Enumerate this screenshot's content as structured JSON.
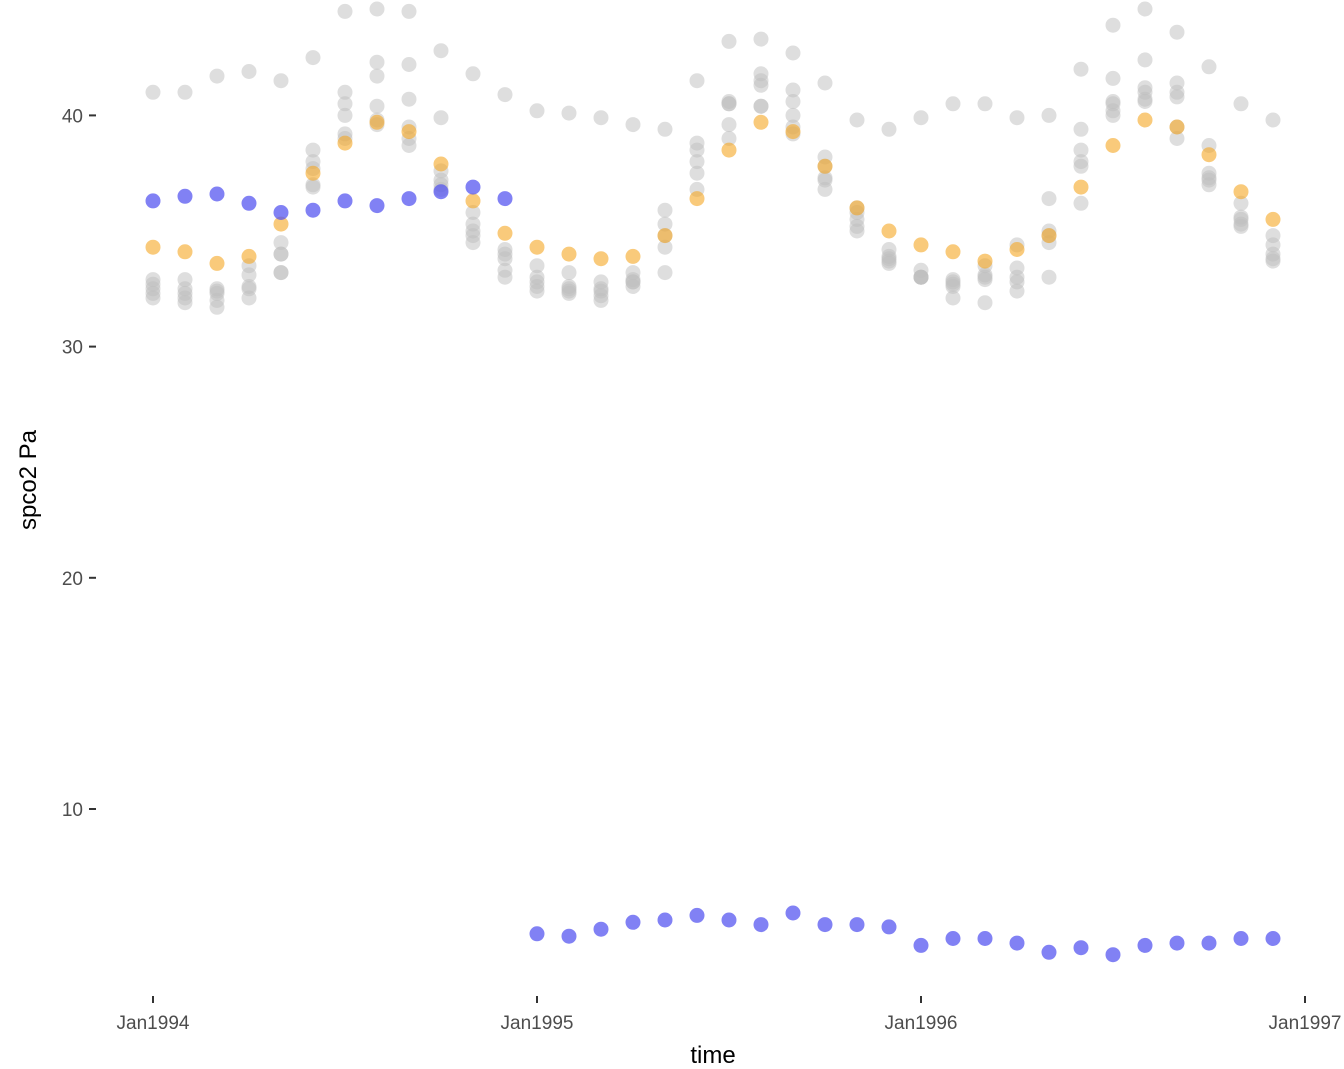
{
  "chart_data": {
    "type": "scatter",
    "title": "",
    "xlabel": "time",
    "ylabel": "spco2  Pa",
    "x_ticks": [
      "Jan1994",
      "Jan1995",
      "Jan1996",
      "Jan1997"
    ],
    "x_tick_months": [
      0,
      12,
      24,
      36
    ],
    "y_ticks": [
      10,
      20,
      30,
      40
    ],
    "xlim_months": [
      -1.45,
      36
    ],
    "ylim": [
      2,
      45
    ],
    "grid": false,
    "legend": "none",
    "colors": {
      "background_points": "#bebebe",
      "highlight_a": "#f5a623",
      "highlight_b": "#5050f0"
    },
    "background_months": [
      0,
      1,
      2,
      3,
      4,
      5,
      6,
      7,
      8,
      9,
      10,
      11,
      12,
      13,
      14,
      15,
      16,
      17,
      18,
      19,
      20,
      21,
      22,
      23,
      24,
      25,
      26,
      27,
      28,
      29,
      30,
      31,
      32,
      33,
      34,
      35
    ],
    "background_series": [
      {
        "values": [
          41.0,
          41.0,
          41.7,
          41.9,
          41.5,
          42.5,
          44.5,
          44.6,
          44.5,
          42.8,
          41.8,
          40.9,
          40.2,
          40.1,
          39.9,
          39.6,
          39.4,
          41.5,
          43.2,
          43.3,
          42.7,
          41.4,
          39.8,
          39.4,
          39.9,
          40.5,
          40.5,
          39.9,
          40.0,
          42.0,
          43.9,
          44.6,
          43.6,
          42.1,
          40.5,
          39.8
        ]
      },
      {
        "values": [
          32.9,
          32.9,
          32.5,
          33.5,
          34.5,
          38.5,
          41.0,
          42.3,
          42.2,
          39.9,
          35.8,
          34.2,
          33.5,
          33.2,
          32.8,
          33.2,
          35.9,
          38.8,
          40.6,
          41.8,
          41.1,
          38.2,
          36.0,
          34.2,
          33.3,
          32.9,
          33.5,
          34.4,
          36.4,
          39.4,
          41.6,
          42.4,
          41.4,
          38.7,
          36.2,
          34.8
        ]
      },
      {
        "values": [
          32.7,
          32.5,
          32.4,
          33.1,
          34.0,
          38.0,
          40.5,
          41.7,
          40.7,
          37.6,
          35.3,
          34.0,
          33.0,
          32.6,
          32.5,
          32.9,
          35.3,
          38.5,
          40.5,
          41.5,
          40.6,
          37.8,
          35.8,
          33.9,
          33.0,
          32.8,
          33.1,
          33.4,
          35.0,
          38.5,
          40.6,
          41.2,
          41.0,
          37.5,
          35.6,
          34.4
        ]
      },
      {
        "values": [
          32.5,
          32.3,
          32.3,
          32.6,
          34.0,
          37.7,
          40.0,
          40.4,
          39.5,
          37.2,
          35.0,
          33.8,
          32.8,
          32.5,
          32.4,
          32.8,
          34.8,
          38.0,
          40.5,
          41.3,
          40.0,
          37.3,
          35.5,
          33.8,
          33.0,
          32.7,
          33.0,
          33.0,
          34.8,
          38.0,
          40.5,
          41.0,
          40.8,
          37.3,
          35.5,
          34.0
        ]
      },
      {
        "values": [
          32.3,
          32.1,
          32.0,
          32.5,
          33.2,
          37.0,
          39.2,
          39.8,
          39.0,
          37.0,
          34.8,
          33.3,
          32.6,
          32.4,
          32.2,
          32.6,
          34.3,
          37.5,
          39.6,
          40.4,
          39.5,
          37.2,
          35.2,
          33.6,
          33.0,
          32.6,
          32.9,
          32.8,
          34.5,
          37.8,
          40.2,
          40.7,
          39.5,
          37.2,
          35.3,
          33.8
        ]
      },
      {
        "values": [
          32.1,
          31.9,
          31.7,
          32.1,
          33.2,
          36.9,
          39.0,
          39.6,
          38.7,
          36.8,
          34.5,
          33.0,
          32.4,
          32.3,
          32.0,
          32.8,
          33.2,
          36.8,
          39.0,
          40.4,
          39.2,
          36.8,
          35.0,
          33.7,
          33.0,
          32.1,
          31.9,
          32.4,
          33.0,
          36.2,
          40.0,
          40.6,
          39.0,
          37.0,
          35.2,
          33.7
        ]
      }
    ],
    "series": [
      {
        "color": "#f5a623",
        "months": [
          0,
          1,
          2,
          3,
          4,
          5,
          6,
          7,
          8,
          9,
          10,
          11,
          12,
          13,
          14,
          15,
          16,
          17,
          18,
          19,
          20,
          21,
          22,
          23,
          24,
          25,
          26,
          27,
          28,
          29,
          30,
          31,
          32,
          33,
          34,
          35
        ],
        "values": [
          34.3,
          34.1,
          33.6,
          33.9,
          35.3,
          37.5,
          38.8,
          39.7,
          39.3,
          37.9,
          36.3,
          34.9,
          34.3,
          34.0,
          33.8,
          33.9,
          34.8,
          36.4,
          38.5,
          39.7,
          39.3,
          37.8,
          36.0,
          35.0,
          34.4,
          34.1,
          33.7,
          34.2,
          34.8,
          36.9,
          38.7,
          39.8,
          39.5,
          38.3,
          36.7,
          35.5
        ]
      },
      {
        "color": "#5050f0",
        "months": [
          0,
          1,
          2,
          3,
          4,
          5,
          6,
          7,
          8,
          9,
          10,
          11,
          12,
          13,
          14,
          15,
          16,
          17,
          18,
          19,
          20,
          21,
          22,
          23,
          24,
          25,
          26,
          27,
          28,
          29,
          30,
          31,
          32,
          33,
          34,
          35
        ],
        "values": [
          36.3,
          36.5,
          36.6,
          36.2,
          35.8,
          35.9,
          36.3,
          36.1,
          36.4,
          36.7,
          36.9,
          36.4,
          4.6,
          4.5,
          4.8,
          5.1,
          5.2,
          5.4,
          5.2,
          5.0,
          5.5,
          5.0,
          5.0,
          4.9,
          4.1,
          4.4,
          4.4,
          4.2,
          3.8,
          4.0,
          3.7,
          4.1,
          4.2,
          4.2,
          4.4,
          4.4
        ]
      }
    ]
  }
}
